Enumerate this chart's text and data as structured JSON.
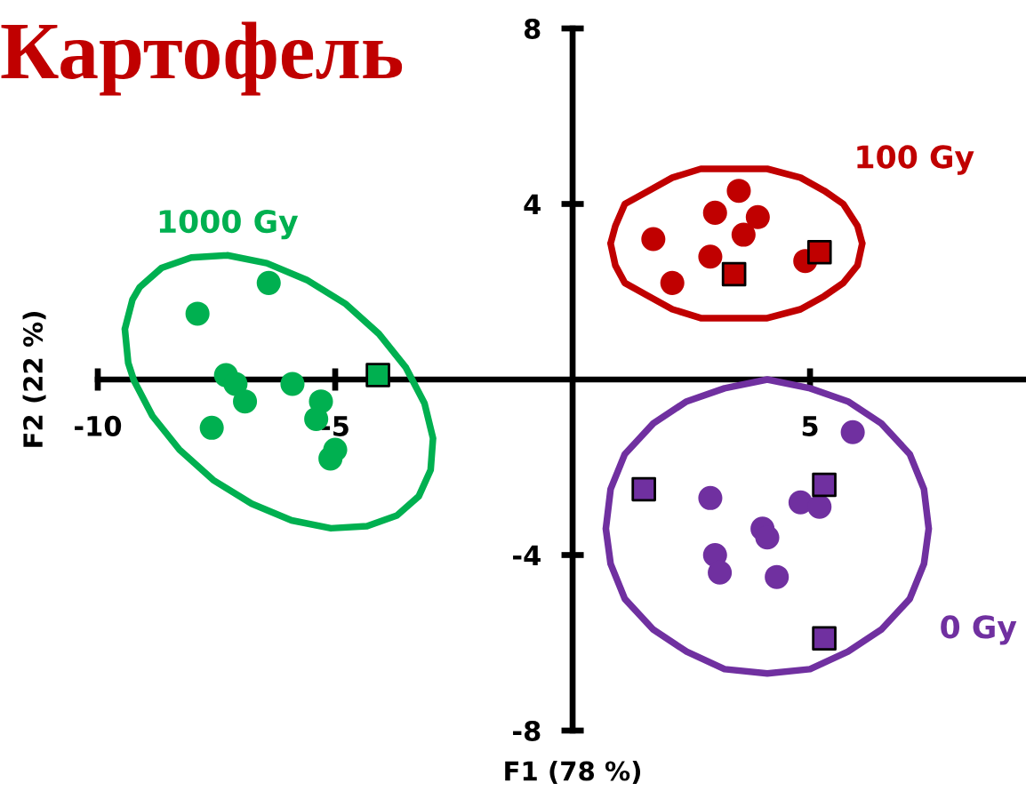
{
  "chart_data": {
    "type": "scatter",
    "title": "Картофель",
    "xlabel": "F1 (78 %)",
    "ylabel": "F2 (22 %)",
    "xlim": [
      -10,
      9.5
    ],
    "ylim": [
      -8,
      8
    ],
    "xticks": [
      -10,
      -5,
      5
    ],
    "yticks": [
      -8,
      -4,
      4,
      8
    ],
    "series": [
      {
        "type": "line",
        "name": "100 Gy",
        "color": "#c00000",
        "marker": "none",
        "x": [
          0.8,
          0.9,
          1.1,
          1.6,
          2.1,
          2.7,
          3.4,
          4.1,
          4.8,
          5.3,
          null,
          5.3,
          5.7,
          6.0,
          6.1,
          null,
          0.8,
          0.9,
          1.1,
          1.6,
          2.1,
          2.7,
          3.4,
          4.1,
          4.8,
          5.3,
          5.7,
          6.0,
          6.1
        ],
        "values": [
          3.1,
          3.5,
          4.0,
          4.3,
          4.6,
          4.8,
          4.8,
          4.8,
          4.6,
          4.3,
          null,
          4.3,
          4.0,
          3.5,
          3.1,
          null,
          3.1,
          2.6,
          2.2,
          1.9,
          1.6,
          1.4,
          1.4,
          1.4,
          1.6,
          1.9,
          2.2,
          2.6,
          3.1
        ]
      },
      {
        "color": "#c00000",
        "marker": "circle",
        "x": [
          3.5,
          3.0,
          3.9,
          3.6,
          1.7,
          2.9,
          2.1,
          4.9
        ],
        "values": [
          4.3,
          3.8,
          3.7,
          3.3,
          3.2,
          2.8,
          2.2,
          2.7
        ]
      },
      {
        "color": "#c00000",
        "marker": "square",
        "x": [
          3.4,
          5.2
        ],
        "values": [
          2.4,
          2.9
        ]
      },
      {
        "type": "line",
        "name": "0 Gy",
        "color": "#7030a0",
        "marker": "none",
        "x": [
          0.7,
          0.8,
          1.1,
          1.7,
          2.4,
          3.2,
          4.1,
          5.0,
          5.8,
          6.5,
          7.1,
          null,
          7.1,
          7.4,
          7.5,
          null,
          0.7,
          0.8,
          1.1,
          1.7,
          2.4,
          3.2,
          4.1,
          5.0,
          5.8,
          6.5,
          7.1,
          7.4,
          7.5
        ],
        "values": [
          -3.4,
          -4.2,
          -5.0,
          -5.7,
          -6.2,
          -6.6,
          -6.7,
          -6.6,
          -6.2,
          -5.7,
          -5.0,
          null,
          -5.0,
          -4.2,
          -3.4,
          null,
          -3.4,
          -2.5,
          -1.7,
          -1.0,
          -0.5,
          -0.2,
          0.0,
          -0.2,
          -0.5,
          -1.0,
          -1.7,
          -2.5,
          -3.4
        ]
      },
      {
        "color": "#7030a0",
        "marker": "circle",
        "x": [
          5.9,
          2.9,
          4.8,
          5.2,
          4.0,
          4.1,
          3.0,
          3.1,
          4.3
        ],
        "values": [
          -1.2,
          -2.7,
          -2.8,
          -2.9,
          -3.4,
          -3.6,
          -4.0,
          -4.4,
          -4.5
        ]
      },
      {
        "color": "#7030a0",
        "marker": "square",
        "x": [
          1.5,
          5.3,
          5.3
        ],
        "values": [
          -2.5,
          -2.4,
          -5.9
        ]
      },
      {
        "type": "line",
        "name": "1000 Gy",
        "color": "#00b050",
        "marker": "none",
        "x": [
          -9.43,
          -9.27,
          -9.12,
          -8.66,
          -8.03,
          -7.27,
          null,
          -7.27,
          -6.44,
          -5.6,
          -4.79,
          -4.08,
          -3.51,
          -3.12,
          -2.94,
          null,
          -9.43,
          -9.36,
          -9.24,
          -8.85,
          -8.28,
          -7.57,
          -6.76,
          -5.92,
          -5.09,
          -4.33,
          -3.7,
          -3.24,
          -2.99,
          -2.94
        ],
        "values": [
          1.15,
          1.82,
          2.1,
          2.54,
          2.78,
          2.83,
          null,
          2.83,
          2.65,
          2.27,
          1.73,
          1.04,
          0.27,
          -0.54,
          -1.34,
          null,
          1.15,
          0.38,
          -0.02,
          -0.83,
          -1.6,
          -2.29,
          -2.83,
          -3.21,
          -3.39,
          -3.34,
          -3.1,
          -2.66,
          -2.06,
          -1.34
        ]
      },
      {
        "color": "#00b050",
        "marker": "circle",
        "x": [
          -6.4,
          -7.9,
          -7.3,
          -7.1,
          -6.9,
          -5.9,
          -5.3,
          -5.4,
          -7.6,
          -5.0,
          -5.1
        ],
        "values": [
          2.2,
          1.5,
          0.1,
          -0.1,
          -0.5,
          -0.1,
          -0.5,
          -0.9,
          -1.1,
          -1.6,
          -1.8
        ]
      },
      {
        "color": "#00b050",
        "marker": "square",
        "x": [
          -4.1
        ],
        "values": [
          0.1
        ]
      }
    ]
  }
}
